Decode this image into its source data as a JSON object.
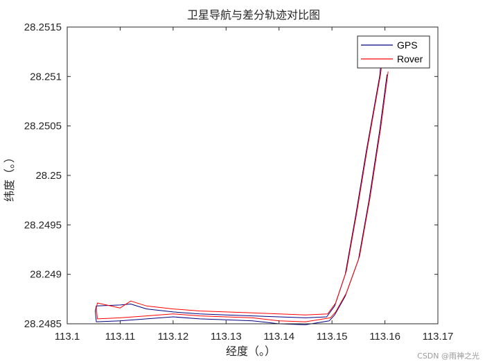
{
  "chart_data": {
    "type": "line",
    "title": "卫星导航与差分轨迹对比图",
    "xlabel": "经度（。）",
    "ylabel": "纬度（。）",
    "xlim": [
      113.1,
      113.17
    ],
    "ylim": [
      28.2485,
      28.2515
    ],
    "xticks": [
      113.1,
      113.11,
      113.12,
      113.13,
      113.14,
      113.15,
      113.16,
      113.17
    ],
    "xtick_labels": [
      "113.1",
      "113.11",
      "113.12",
      "113.13",
      "113.14",
      "113.15",
      "113.16",
      "113.17"
    ],
    "yticks": [
      28.2485,
      28.249,
      28.2495,
      28.25,
      28.2505,
      28.251,
      28.2515
    ],
    "ytick_labels": [
      "28.2485",
      "28.249",
      "28.2495",
      "28.25",
      "28.2505",
      "28.251",
      "28.2515"
    ],
    "grid": false,
    "legend_position": "top-right",
    "series": [
      {
        "name": "GPS",
        "color": "#00007f",
        "x": [
          113.1604,
          113.159,
          113.157,
          113.155,
          113.1525,
          113.1505,
          113.1495,
          113.145,
          113.14,
          113.135,
          113.13,
          113.125,
          113.12,
          113.115,
          113.11,
          113.1055,
          113.1053,
          113.1055,
          113.11,
          113.112,
          113.115,
          113.12,
          113.125,
          113.13,
          113.135,
          113.14,
          113.145,
          113.149,
          113.1505,
          113.1525,
          113.1545,
          113.1565,
          113.158,
          113.159,
          113.1595
        ],
        "y": [
          28.25102,
          28.25045,
          28.24975,
          28.24915,
          28.24878,
          28.24859,
          28.24853,
          28.24849,
          28.2485,
          28.24853,
          28.24854,
          28.24855,
          28.24857,
          28.24855,
          28.24853,
          28.24852,
          28.24863,
          28.24868,
          28.24869,
          28.2487,
          28.24865,
          28.24862,
          28.2486,
          28.24859,
          28.24858,
          28.24857,
          28.24856,
          28.24857,
          28.24868,
          28.249,
          28.2496,
          28.25025,
          28.2507,
          28.251,
          28.25125
        ]
      },
      {
        "name": "Rover",
        "color": "#ff0000",
        "x": [
          113.1606,
          113.1592,
          113.1572,
          113.1552,
          113.1527,
          113.1507,
          113.1497,
          113.145,
          113.14,
          113.135,
          113.13,
          113.125,
          113.12,
          113.115,
          113.11,
          113.1057,
          113.1055,
          113.1057,
          113.11,
          113.112,
          113.115,
          113.12,
          113.125,
          113.13,
          113.135,
          113.14,
          113.145,
          113.1492,
          113.1507,
          113.1527,
          113.1547,
          113.1567,
          113.1582,
          113.1592,
          113.1597
        ],
        "y": [
          28.25105,
          28.25048,
          28.24978,
          28.24918,
          28.24881,
          28.24862,
          28.24856,
          28.24852,
          28.24853,
          28.24856,
          28.24857,
          28.24858,
          28.2486,
          28.24858,
          28.24856,
          28.24855,
          28.24866,
          28.24871,
          28.24866,
          28.24873,
          28.24868,
          28.24865,
          28.24863,
          28.24862,
          28.24861,
          28.2486,
          28.24859,
          28.2486,
          28.24871,
          28.24903,
          28.24963,
          28.25028,
          28.25073,
          28.25103,
          28.25128
        ]
      }
    ]
  },
  "legend": {
    "items": [
      {
        "label": "GPS",
        "color": "#00007f"
      },
      {
        "label": "Rover",
        "color": "#ff0000"
      }
    ]
  },
  "watermark": "CSDN @雨神之光"
}
